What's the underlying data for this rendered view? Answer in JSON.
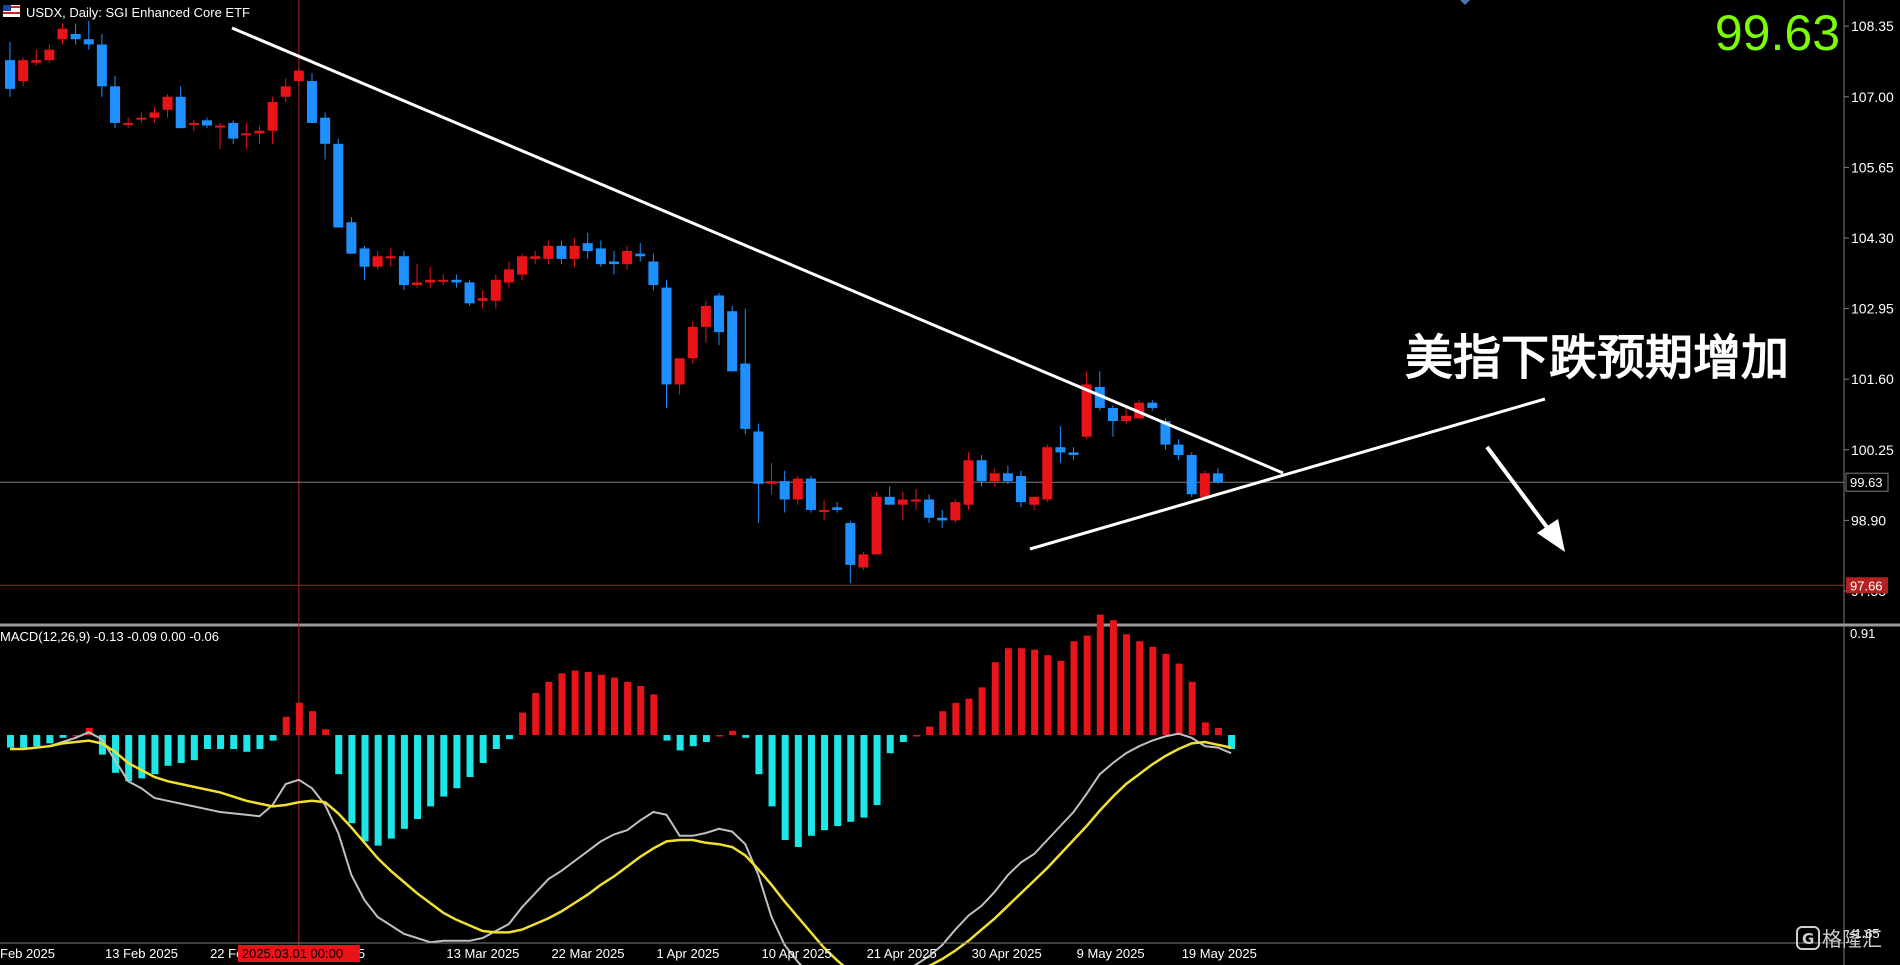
{
  "header": {
    "symbol_text": "USDX, Daily:  SGI Enhanced Core ETF",
    "big_price": "99.63",
    "big_price_color": "#7CFC00",
    "flag_icon": "flag-icon"
  },
  "annotation": {
    "text": "美指下跌预期增加",
    "arrow_icon": "arrow-down-right-icon"
  },
  "price_axis": {
    "ticks": [
      "108.35",
      "107.00",
      "105.65",
      "104.30",
      "102.95",
      "101.60",
      "100.25",
      "98.90",
      "97.55"
    ],
    "tick_values": [
      108.35,
      107.0,
      105.65,
      104.3,
      102.95,
      101.6,
      100.25,
      98.9,
      97.55
    ],
    "current_label": "99.63",
    "current_value": 99.63,
    "support_label": "97.66",
    "support_value": 97.66
  },
  "macd": {
    "label": "MACD(12,26,9) -0.13 -0.09 0.00 -0.06",
    "axis_top": "0.91",
    "axis_bottom": "-1.65"
  },
  "date_axis": {
    "labels": [
      "Feb 2025",
      "13 Feb 2025",
      "22 Feb",
      "r 2025",
      "13 Mar 2025",
      "22 Mar 2025",
      "1 Apr 2025",
      "10 Apr 2025",
      "21 Apr 2025",
      "30 Apr 2025",
      "9 May 2025",
      "19 May 2025"
    ],
    "label_bar_index": [
      0,
      8,
      16,
      25,
      34,
      42,
      50,
      58,
      66,
      74,
      82,
      90
    ],
    "crosshair_label": "2025.03.01 00:00",
    "crosshair_bar_index": 22
  },
  "colors": {
    "background": "#000000",
    "bull": "#E8141A",
    "bear": "#1E90FF",
    "hist_pos": "#E8141A",
    "hist_neg": "#1FE6E6",
    "macd_line": "#C0C0C0",
    "signal_line": "#F0E130",
    "trendline": "#FFFFFF",
    "grid_line": "#808080",
    "support_line": "#B22222"
  },
  "watermark": {
    "text": "格隆汇"
  },
  "chart_data": {
    "type": "candlestick",
    "title": "USDX, Daily:  SGI Enhanced Core ETF",
    "ylim": [
      96.9,
      108.85
    ],
    "candles": [
      {
        "o": 107.7,
        "h": 108.05,
        "l": 107.0,
        "c": 107.15
      },
      {
        "o": 107.3,
        "h": 107.75,
        "l": 107.2,
        "c": 107.7
      },
      {
        "o": 107.65,
        "h": 107.9,
        "l": 107.6,
        "c": 107.7
      },
      {
        "o": 107.7,
        "h": 108.0,
        "l": 107.65,
        "c": 107.9
      },
      {
        "o": 108.1,
        "h": 108.4,
        "l": 108.0,
        "c": 108.3
      },
      {
        "o": 108.2,
        "h": 108.4,
        "l": 108.0,
        "c": 108.1
      },
      {
        "o": 108.1,
        "h": 108.45,
        "l": 107.9,
        "c": 108.0
      },
      {
        "o": 108.0,
        "h": 108.2,
        "l": 107.0,
        "c": 107.2
      },
      {
        "o": 107.2,
        "h": 107.4,
        "l": 106.4,
        "c": 106.5
      },
      {
        "o": 106.5,
        "h": 106.6,
        "l": 106.4,
        "c": 106.5
      },
      {
        "o": 106.6,
        "h": 106.7,
        "l": 106.5,
        "c": 106.6
      },
      {
        "o": 106.6,
        "h": 106.8,
        "l": 106.5,
        "c": 106.7
      },
      {
        "o": 106.75,
        "h": 107.05,
        "l": 106.6,
        "c": 107.0
      },
      {
        "o": 107.0,
        "h": 107.2,
        "l": 106.4,
        "c": 106.4
      },
      {
        "o": 106.5,
        "h": 106.55,
        "l": 106.35,
        "c": 106.5
      },
      {
        "o": 106.55,
        "h": 106.6,
        "l": 106.4,
        "c": 106.45
      },
      {
        "o": 106.45,
        "h": 106.5,
        "l": 106.0,
        "c": 106.45
      },
      {
        "o": 106.5,
        "h": 106.55,
        "l": 106.1,
        "c": 106.2
      },
      {
        "o": 106.3,
        "h": 106.5,
        "l": 106.0,
        "c": 106.3
      },
      {
        "o": 106.3,
        "h": 106.45,
        "l": 106.1,
        "c": 106.35
      },
      {
        "o": 106.35,
        "h": 107.0,
        "l": 106.1,
        "c": 106.9
      },
      {
        "o": 107.0,
        "h": 107.35,
        "l": 106.9,
        "c": 107.2
      },
      {
        "o": 107.3,
        "h": 107.55,
        "l": 107.2,
        "c": 107.5
      },
      {
        "o": 107.3,
        "h": 107.45,
        "l": 106.5,
        "c": 106.5
      },
      {
        "o": 106.6,
        "h": 106.7,
        "l": 105.8,
        "c": 106.1
      },
      {
        "o": 106.1,
        "h": 106.2,
        "l": 104.5,
        "c": 104.5
      },
      {
        "o": 104.6,
        "h": 104.7,
        "l": 104.0,
        "c": 104.0
      },
      {
        "o": 104.1,
        "h": 104.15,
        "l": 103.5,
        "c": 103.75
      },
      {
        "o": 103.75,
        "h": 104.05,
        "l": 103.7,
        "c": 103.95
      },
      {
        "o": 103.95,
        "h": 104.1,
        "l": 103.75,
        "c": 103.95
      },
      {
        "o": 103.95,
        "h": 104.05,
        "l": 103.3,
        "c": 103.4
      },
      {
        "o": 103.4,
        "h": 103.8,
        "l": 103.35,
        "c": 103.45
      },
      {
        "o": 103.45,
        "h": 103.75,
        "l": 103.35,
        "c": 103.5
      },
      {
        "o": 103.5,
        "h": 103.6,
        "l": 103.4,
        "c": 103.5
      },
      {
        "o": 103.5,
        "h": 103.6,
        "l": 103.35,
        "c": 103.45
      },
      {
        "o": 103.45,
        "h": 103.5,
        "l": 103.0,
        "c": 103.05
      },
      {
        "o": 103.1,
        "h": 103.3,
        "l": 102.95,
        "c": 103.15
      },
      {
        "o": 103.1,
        "h": 103.6,
        "l": 102.95,
        "c": 103.5
      },
      {
        "o": 103.45,
        "h": 103.85,
        "l": 103.35,
        "c": 103.7
      },
      {
        "o": 103.6,
        "h": 104.0,
        "l": 103.5,
        "c": 103.95
      },
      {
        "o": 103.9,
        "h": 104.05,
        "l": 103.8,
        "c": 103.95
      },
      {
        "o": 103.9,
        "h": 104.25,
        "l": 103.8,
        "c": 104.15
      },
      {
        "o": 104.15,
        "h": 104.25,
        "l": 103.8,
        "c": 103.9
      },
      {
        "o": 103.9,
        "h": 104.3,
        "l": 103.75,
        "c": 104.15
      },
      {
        "o": 104.2,
        "h": 104.4,
        "l": 103.9,
        "c": 104.05
      },
      {
        "o": 104.1,
        "h": 104.25,
        "l": 103.75,
        "c": 103.8
      },
      {
        "o": 103.85,
        "h": 104.05,
        "l": 103.6,
        "c": 103.8
      },
      {
        "o": 103.8,
        "h": 104.15,
        "l": 103.7,
        "c": 104.05
      },
      {
        "o": 104.0,
        "h": 104.2,
        "l": 103.85,
        "c": 103.95
      },
      {
        "o": 103.85,
        "h": 104.0,
        "l": 103.3,
        "c": 103.4
      },
      {
        "o": 103.35,
        "h": 103.5,
        "l": 101.05,
        "c": 101.5
      },
      {
        "o": 101.5,
        "h": 101.95,
        "l": 101.3,
        "c": 102.0
      },
      {
        "o": 102.0,
        "h": 102.7,
        "l": 101.9,
        "c": 102.6
      },
      {
        "o": 102.6,
        "h": 103.1,
        "l": 102.3,
        "c": 103.0
      },
      {
        "o": 103.2,
        "h": 103.25,
        "l": 102.25,
        "c": 102.5
      },
      {
        "o": 102.9,
        "h": 103.0,
        "l": 101.8,
        "c": 101.75
      },
      {
        "o": 101.9,
        "h": 102.95,
        "l": 100.55,
        "c": 100.65
      },
      {
        "o": 100.6,
        "h": 100.75,
        "l": 98.85,
        "c": 99.6
      },
      {
        "o": 99.6,
        "h": 100.0,
        "l": 99.4,
        "c": 99.65
      },
      {
        "o": 99.65,
        "h": 99.85,
        "l": 99.05,
        "c": 99.3
      },
      {
        "o": 99.3,
        "h": 99.75,
        "l": 99.2,
        "c": 99.7
      },
      {
        "o": 99.7,
        "h": 99.75,
        "l": 99.05,
        "c": 99.1
      },
      {
        "o": 99.1,
        "h": 99.3,
        "l": 98.9,
        "c": 99.1
      },
      {
        "o": 99.15,
        "h": 99.25,
        "l": 99.05,
        "c": 99.1
      },
      {
        "o": 98.85,
        "h": 98.9,
        "l": 97.7,
        "c": 98.05
      },
      {
        "o": 98.0,
        "h": 98.3,
        "l": 97.95,
        "c": 98.25
      },
      {
        "o": 98.25,
        "h": 99.45,
        "l": 98.25,
        "c": 99.35
      },
      {
        "o": 99.35,
        "h": 99.55,
        "l": 99.2,
        "c": 99.2
      },
      {
        "o": 99.2,
        "h": 99.45,
        "l": 98.9,
        "c": 99.3
      },
      {
        "o": 99.3,
        "h": 99.5,
        "l": 99.1,
        "c": 99.3
      },
      {
        "o": 99.3,
        "h": 99.4,
        "l": 98.85,
        "c": 98.95
      },
      {
        "o": 98.95,
        "h": 99.1,
        "l": 98.75,
        "c": 98.9
      },
      {
        "o": 98.9,
        "h": 99.3,
        "l": 98.85,
        "c": 99.25
      },
      {
        "o": 99.2,
        "h": 100.2,
        "l": 99.1,
        "c": 100.05
      },
      {
        "o": 100.05,
        "h": 100.15,
        "l": 99.55,
        "c": 99.65
      },
      {
        "o": 99.65,
        "h": 99.9,
        "l": 99.55,
        "c": 99.8
      },
      {
        "o": 99.8,
        "h": 99.95,
        "l": 99.6,
        "c": 99.65
      },
      {
        "o": 99.75,
        "h": 99.85,
        "l": 99.15,
        "c": 99.25
      },
      {
        "o": 99.2,
        "h": 99.35,
        "l": 99.1,
        "c": 99.35
      },
      {
        "o": 99.3,
        "h": 100.35,
        "l": 99.25,
        "c": 100.3
      },
      {
        "o": 100.3,
        "h": 100.7,
        "l": 100.0,
        "c": 100.2
      },
      {
        "o": 100.2,
        "h": 100.3,
        "l": 100.05,
        "c": 100.15
      },
      {
        "o": 100.5,
        "h": 101.75,
        "l": 100.45,
        "c": 101.5
      },
      {
        "o": 101.45,
        "h": 101.75,
        "l": 101.0,
        "c": 101.05
      },
      {
        "o": 101.05,
        "h": 101.1,
        "l": 100.5,
        "c": 100.8
      },
      {
        "o": 100.8,
        "h": 101.05,
        "l": 100.75,
        "c": 100.9
      },
      {
        "o": 100.85,
        "h": 101.2,
        "l": 100.85,
        "c": 101.15
      },
      {
        "o": 101.15,
        "h": 101.2,
        "l": 101.0,
        "c": 101.05
      },
      {
        "o": 100.8,
        "h": 100.85,
        "l": 100.25,
        "c": 100.35
      },
      {
        "o": 100.35,
        "h": 100.45,
        "l": 100.05,
        "c": 100.15
      },
      {
        "o": 100.15,
        "h": 100.2,
        "l": 99.35,
        "c": 99.4
      },
      {
        "o": 99.35,
        "h": 99.85,
        "l": 99.3,
        "c": 99.8
      },
      {
        "o": 99.8,
        "h": 99.9,
        "l": 99.6,
        "c": 99.63
      }
    ],
    "macd_histogram": [
      -0.09,
      -0.09,
      -0.08,
      -0.06,
      -0.02,
      0.0,
      0.05,
      -0.14,
      -0.27,
      -0.33,
      -0.31,
      -0.28,
      -0.22,
      -0.2,
      -0.18,
      -0.1,
      -0.1,
      -0.1,
      -0.12,
      -0.1,
      -0.04,
      0.13,
      0.23,
      0.17,
      0.04,
      -0.28,
      -0.63,
      -0.76,
      -0.79,
      -0.74,
      -0.67,
      -0.6,
      -0.51,
      -0.44,
      -0.38,
      -0.3,
      -0.2,
      -0.1,
      -0.03,
      0.16,
      0.3,
      0.38,
      0.44,
      0.46,
      0.45,
      0.43,
      0.41,
      0.38,
      0.35,
      0.29,
      -0.04,
      -0.11,
      -0.08,
      -0.05,
      0.0,
      0.03,
      -0.02,
      -0.28,
      -0.51,
      -0.75,
      -0.8,
      -0.72,
      -0.68,
      -0.65,
      -0.62,
      -0.59,
      -0.5,
      -0.13,
      -0.05,
      0.0,
      0.06,
      0.17,
      0.23,
      0.26,
      0.34,
      0.52,
      0.62,
      0.62,
      0.61,
      0.57,
      0.53,
      0.67,
      0.71,
      0.86,
      0.82,
      0.72,
      0.67,
      0.63,
      0.58,
      0.51,
      0.38,
      0.09,
      0.05,
      -0.1
    ],
    "macd_line": [
      -0.1,
      -0.1,
      -0.09,
      -0.08,
      -0.05,
      -0.02,
      0.02,
      -0.03,
      -0.18,
      -0.33,
      -0.38,
      -0.45,
      -0.47,
      -0.49,
      -0.51,
      -0.53,
      -0.55,
      -0.56,
      -0.57,
      -0.58,
      -0.5,
      -0.35,
      -0.32,
      -0.38,
      -0.5,
      -0.7,
      -1.0,
      -1.18,
      -1.3,
      -1.36,
      -1.42,
      -1.45,
      -1.48,
      -1.47,
      -1.47,
      -1.47,
      -1.45,
      -1.4,
      -1.35,
      -1.23,
      -1.13,
      -1.03,
      -0.97,
      -0.9,
      -0.83,
      -0.76,
      -0.71,
      -0.68,
      -0.61,
      -0.55,
      -0.57,
      -0.72,
      -0.72,
      -0.7,
      -0.67,
      -0.69,
      -0.78,
      -1.0,
      -1.3,
      -1.5,
      -1.62,
      -1.72,
      -1.77,
      -1.82,
      -1.9,
      -1.94,
      -1.86,
      -1.78,
      -1.71,
      -1.64,
      -1.58,
      -1.5,
      -1.39,
      -1.29,
      -1.22,
      -1.12,
      -1.0,
      -0.91,
      -0.85,
      -0.75,
      -0.65,
      -0.55,
      -0.42,
      -0.28,
      -0.2,
      -0.13,
      -0.08,
      -0.04,
      -0.01,
      0.01,
      -0.02,
      -0.08,
      -0.09,
      -0.13
    ],
    "signal_line": [
      -0.1,
      -0.1,
      -0.09,
      -0.08,
      -0.06,
      -0.05,
      -0.04,
      -0.06,
      -0.12,
      -0.2,
      -0.25,
      -0.3,
      -0.33,
      -0.35,
      -0.37,
      -0.39,
      -0.41,
      -0.44,
      -0.47,
      -0.49,
      -0.51,
      -0.5,
      -0.48,
      -0.47,
      -0.48,
      -0.56,
      -0.66,
      -0.77,
      -0.88,
      -0.97,
      -1.05,
      -1.13,
      -1.2,
      -1.27,
      -1.32,
      -1.36,
      -1.4,
      -1.41,
      -1.41,
      -1.39,
      -1.35,
      -1.31,
      -1.26,
      -1.2,
      -1.14,
      -1.07,
      -1.01,
      -0.94,
      -0.87,
      -0.81,
      -0.76,
      -0.75,
      -0.75,
      -0.77,
      -0.78,
      -0.8,
      -0.86,
      -0.96,
      -1.07,
      -1.19,
      -1.3,
      -1.41,
      -1.52,
      -1.61,
      -1.69,
      -1.75,
      -1.77,
      -1.76,
      -1.74,
      -1.7,
      -1.65,
      -1.6,
      -1.54,
      -1.47,
      -1.39,
      -1.31,
      -1.22,
      -1.13,
      -1.04,
      -0.95,
      -0.85,
      -0.75,
      -0.65,
      -0.54,
      -0.44,
      -0.35,
      -0.28,
      -0.21,
      -0.15,
      -0.1,
      -0.06,
      -0.05,
      -0.07,
      -0.09
    ]
  }
}
